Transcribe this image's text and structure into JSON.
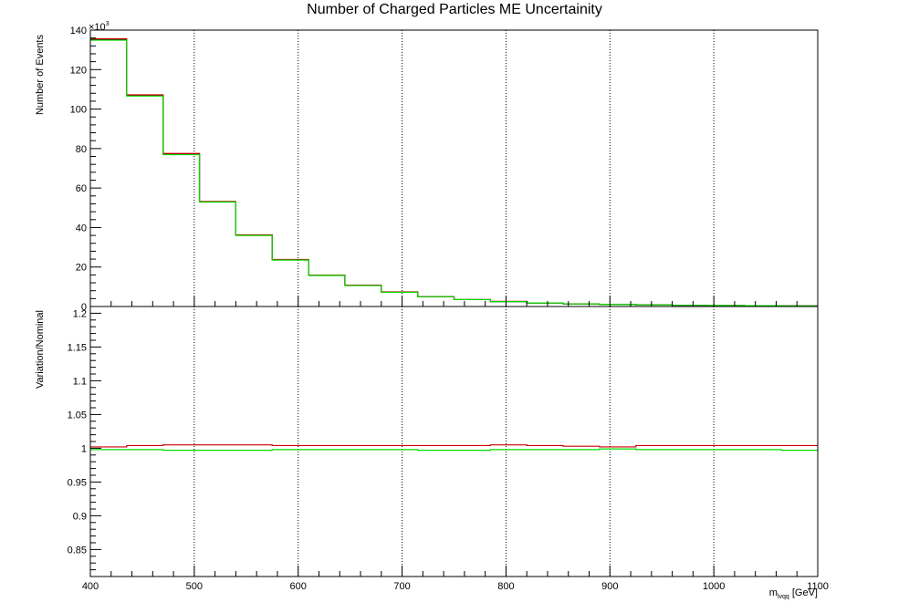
{
  "chart_data": [
    {
      "type": "line",
      "step": true,
      "title": "Number of Charged Particles ME Uncertainity",
      "ylabel": "Number of Events",
      "y_multiplier_label": "×10",
      "y_multiplier_exponent": "3",
      "xlim": [
        400,
        1100
      ],
      "ylim": [
        0,
        140
      ],
      "y_ticks": [
        0,
        20,
        40,
        60,
        80,
        100,
        120,
        140
      ],
      "x_grid": [
        500,
        600,
        700,
        800,
        900,
        1000
      ],
      "x_edges": [
        400,
        435,
        470,
        505,
        540,
        575,
        610,
        645,
        680,
        715,
        750,
        785,
        820,
        855,
        890,
        925,
        960,
        995,
        1030,
        1065,
        1100
      ],
      "series": [
        {
          "color": "#000000",
          "values": [
            135.2,
            106.8,
            77.1,
            53.0,
            36.1,
            23.6,
            15.8,
            10.7,
            7.3,
            5.0,
            3.5,
            2.5,
            1.8,
            1.3,
            1.0,
            0.8,
            0.6,
            0.5,
            0.4,
            0.3
          ]
        },
        {
          "color": "#cc0000",
          "values": [
            135.6,
            107.2,
            77.5,
            53.2,
            36.3,
            23.8,
            15.9,
            10.8,
            7.4,
            5.0,
            3.5,
            2.6,
            1.8,
            1.3,
            1.0,
            0.8,
            0.6,
            0.5,
            0.4,
            0.3
          ]
        },
        {
          "color": "#00dd00",
          "values": [
            134.9,
            106.6,
            76.9,
            52.9,
            36.0,
            23.5,
            15.7,
            10.6,
            7.2,
            5.0,
            3.5,
            2.5,
            1.8,
            1.3,
            1.0,
            0.8,
            0.6,
            0.5,
            0.4,
            0.3
          ]
        }
      ]
    },
    {
      "type": "line",
      "step": true,
      "ylabel": "Variation/Nominal",
      "xlabel_main": "m",
      "xlabel_sub": "lvqq",
      "xlabel_unit": " [GeV]",
      "xlim": [
        400,
        1100
      ],
      "ylim": [
        0.81,
        1.21
      ],
      "y_ticks": [
        0.85,
        0.9,
        0.95,
        1.0,
        1.05,
        1.1,
        1.15,
        1.2
      ],
      "y_tick_labels": [
        "0.85",
        "0.9",
        "0.95",
        "1",
        "1.05",
        "1.1",
        "1.15",
        "1.2"
      ],
      "x_ticks": [
        400,
        500,
        600,
        700,
        800,
        900,
        1000,
        1100
      ],
      "x_grid": [
        500,
        600,
        700,
        800,
        900,
        1000
      ],
      "x_edges": [
        400,
        435,
        470,
        505,
        540,
        575,
        610,
        645,
        680,
        715,
        750,
        785,
        820,
        855,
        890,
        925,
        960,
        995,
        1030,
        1065,
        1100
      ],
      "series": [
        {
          "color": "#cc0000",
          "values": [
            1.002,
            1.004,
            1.005,
            1.005,
            1.005,
            1.004,
            1.004,
            1.004,
            1.004,
            1.004,
            1.004,
            1.005,
            1.004,
            1.003,
            1.002,
            1.004,
            1.004,
            1.004,
            1.004,
            1.004
          ]
        },
        {
          "color": "#00dd00",
          "values": [
            0.998,
            0.998,
            0.997,
            0.997,
            0.997,
            0.998,
            0.998,
            0.998,
            0.998,
            0.997,
            0.997,
            0.998,
            0.998,
            0.998,
            0.999,
            0.998,
            0.998,
            0.998,
            0.998,
            0.997
          ]
        }
      ]
    }
  ]
}
